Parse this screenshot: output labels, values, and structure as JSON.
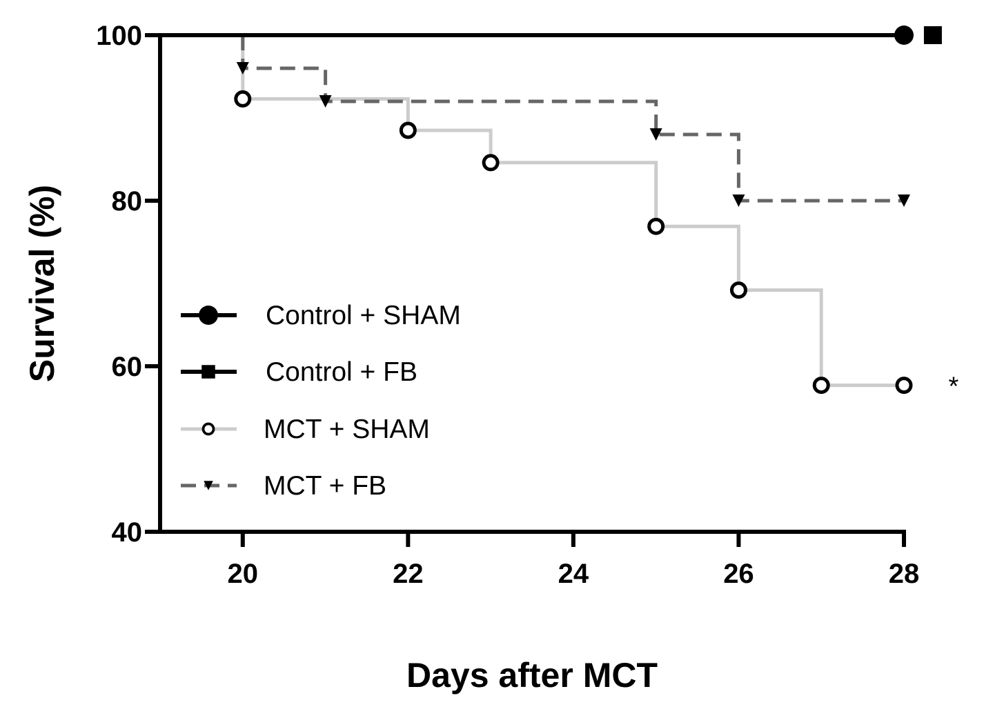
{
  "chart_data": {
    "type": "line",
    "xlabel": "Days after MCT",
    "ylabel": "Survival (%)",
    "xlim": [
      19,
      28
    ],
    "ylim": [
      40,
      100
    ],
    "xticks": [
      20,
      22,
      24,
      26,
      28
    ],
    "yticks": [
      40,
      60,
      80,
      100
    ],
    "x_tick_labels": [
      "20",
      "22",
      "24",
      "26",
      "28"
    ],
    "y_tick_labels": [
      "40",
      "60",
      "80",
      "100"
    ],
    "legend_position": "left-center",
    "grid": false,
    "series": [
      {
        "name": "Control + SHAM",
        "color": "#000000",
        "line_style": "solid",
        "marker": "circle-filled",
        "steps": [
          [
            19,
            100
          ],
          [
            28,
            100
          ]
        ],
        "markers": [
          [
            28,
            100
          ]
        ]
      },
      {
        "name": "Control + FB",
        "color": "#000000",
        "line_style": "solid",
        "marker": "square-filled",
        "steps": [
          [
            19,
            100
          ],
          [
            28,
            100
          ]
        ],
        "markers": [
          [
            28.35,
            100
          ]
        ]
      },
      {
        "name": "MCT + SHAM",
        "color": "#cccccc",
        "line_style": "solid",
        "marker": "circle-open",
        "steps": [
          [
            20,
            100
          ],
          [
            20,
            92.3
          ],
          [
            22,
            92.3
          ],
          [
            22,
            88.5
          ],
          [
            23,
            88.5
          ],
          [
            23,
            84.6
          ],
          [
            25,
            84.6
          ],
          [
            25,
            76.9
          ],
          [
            26,
            76.9
          ],
          [
            26,
            69.2
          ],
          [
            27,
            69.2
          ],
          [
            27,
            57.7
          ],
          [
            28,
            57.7
          ]
        ],
        "markers": [
          [
            20,
            92.3
          ],
          [
            22,
            88.5
          ],
          [
            23,
            84.6
          ],
          [
            25,
            76.9
          ],
          [
            26,
            69.2
          ],
          [
            27,
            57.7
          ],
          [
            28,
            57.7
          ]
        ]
      },
      {
        "name": "MCT + FB",
        "color": "#666666",
        "line_style": "dashed",
        "marker": "triangle-down-filled",
        "steps": [
          [
            20,
            100
          ],
          [
            20,
            96
          ],
          [
            21,
            96
          ],
          [
            21,
            92
          ],
          [
            25,
            92
          ],
          [
            25,
            88
          ],
          [
            26,
            88
          ],
          [
            26,
            80
          ],
          [
            28,
            80
          ]
        ],
        "markers": [
          [
            20,
            96
          ],
          [
            21,
            92
          ],
          [
            25,
            88
          ],
          [
            26,
            80
          ],
          [
            28,
            80
          ]
        ]
      }
    ],
    "annotations": [
      {
        "text": "*",
        "x": 28.6,
        "y": 57.7
      }
    ]
  }
}
